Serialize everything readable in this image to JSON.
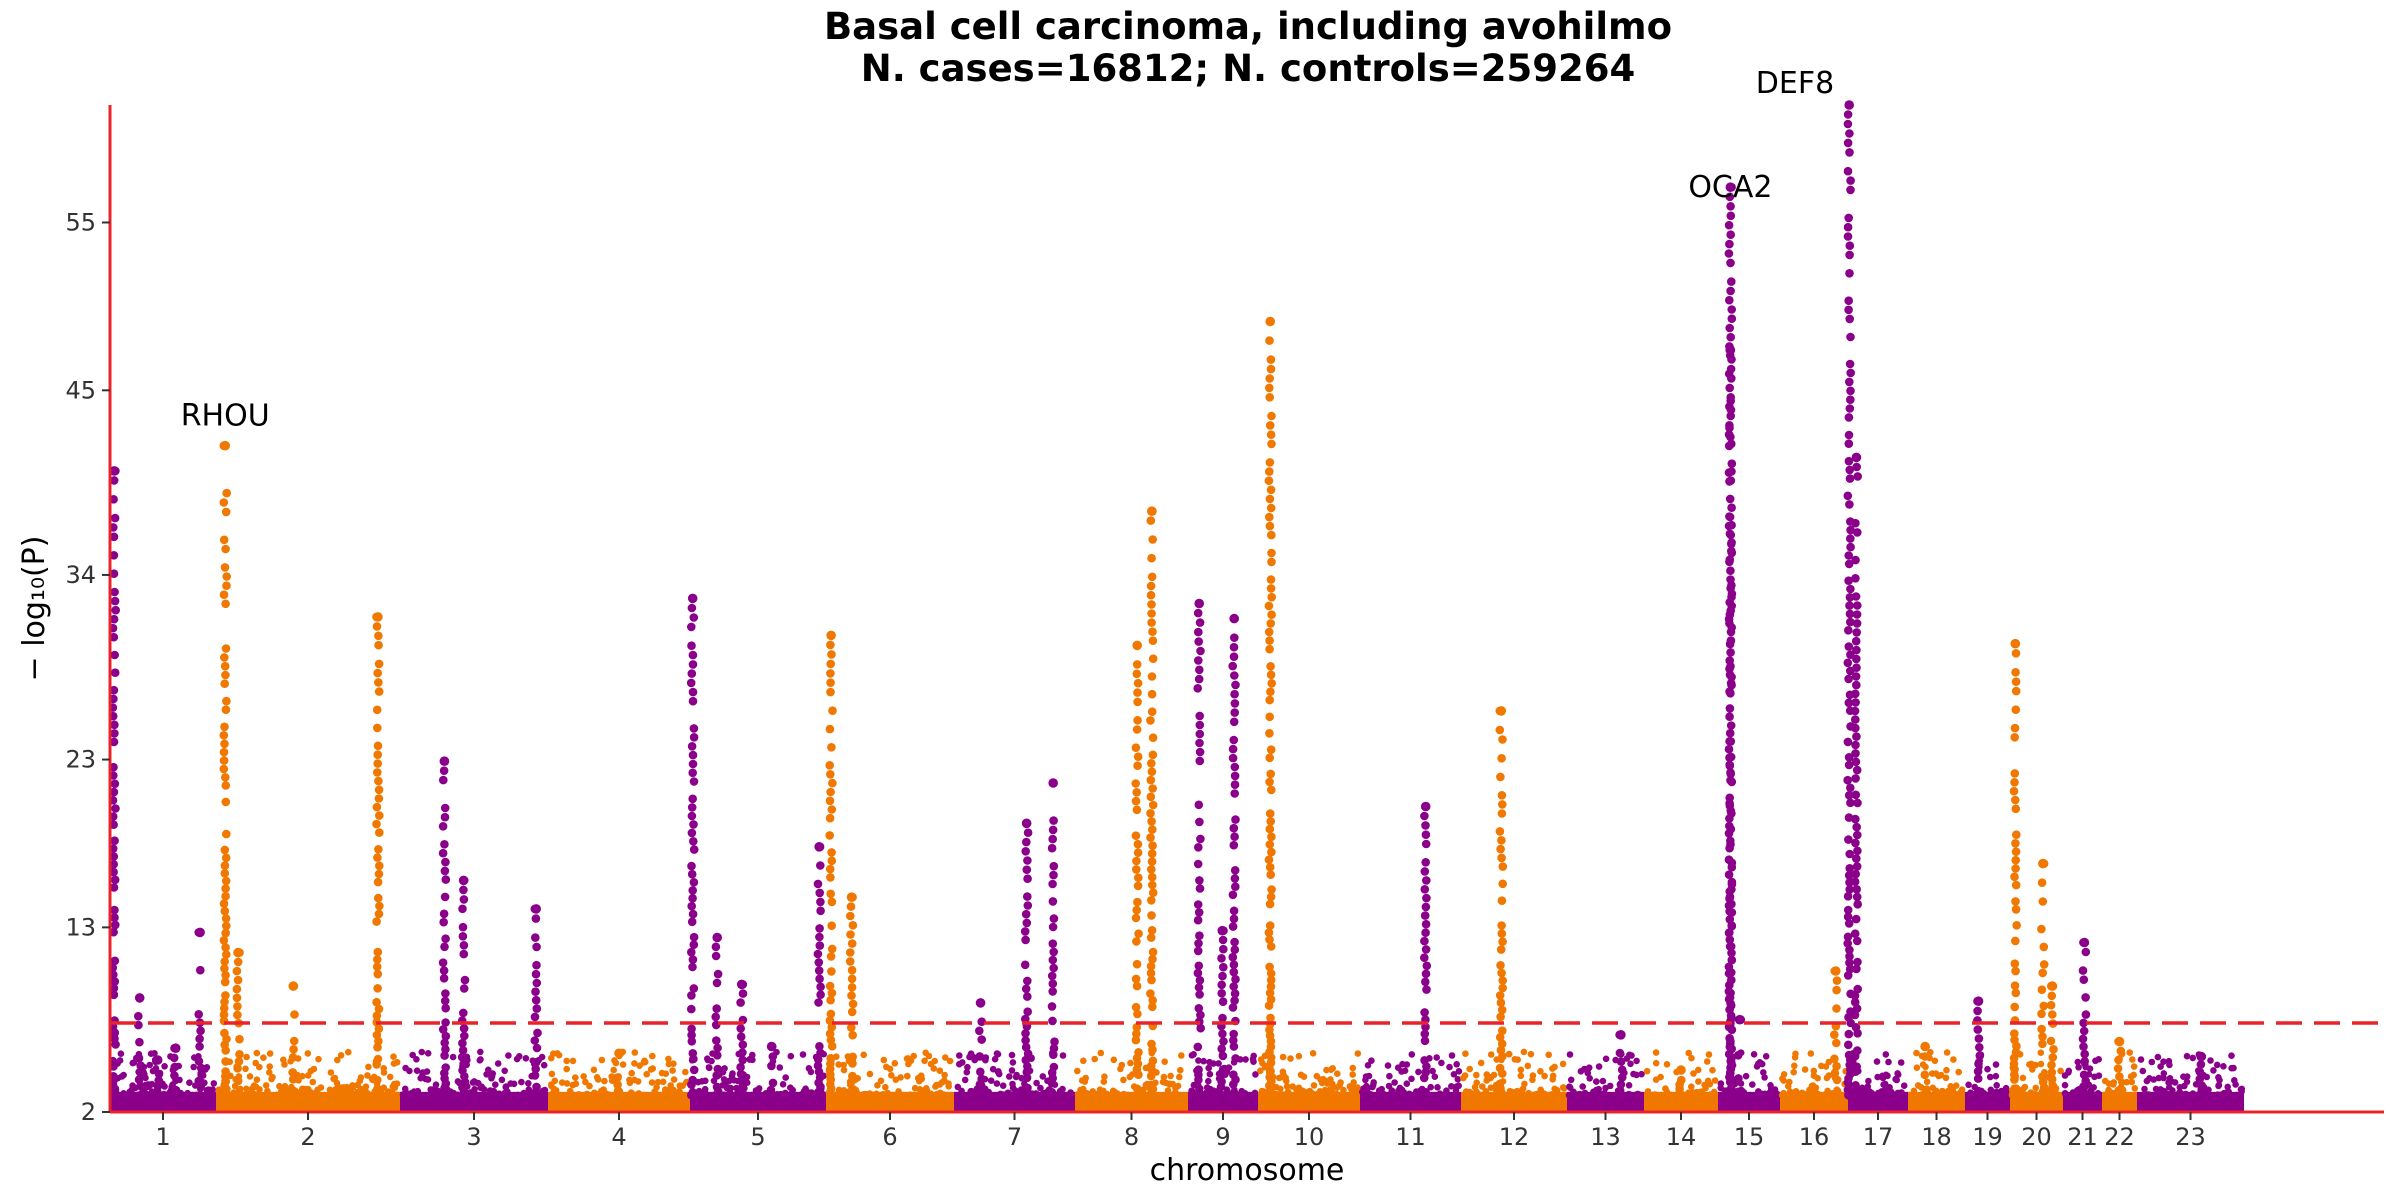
{
  "chart_data": {
    "type": "scatter",
    "subtype": "manhattan",
    "title": "Basal cell carcinoma, including avohilmo",
    "subtitle": "N. cases=16812; N. controls=259264",
    "xlabel": "chromosome",
    "ylabel": "− log₁₀(P)",
    "ylim": [
      2,
      62
    ],
    "yticks": [
      2,
      13,
      23,
      34,
      45,
      55
    ],
    "significance_line": 7.3,
    "grid": false,
    "colors": {
      "odd_chromosomes": "#8B008B",
      "even_chromosomes": "#F07800",
      "axis": "#E8242A",
      "threshold": "#E8242A"
    },
    "chromosomes": [
      {
        "label": "1",
        "peaks": [
          {
            "pos": 0.04,
            "y": 40.2
          },
          {
            "pos": 0.28,
            "y": 8.8
          },
          {
            "pos": 0.45,
            "y": 5.1
          },
          {
            "pos": 0.62,
            "y": 5.8
          },
          {
            "pos": 0.85,
            "y": 12.7
          }
        ]
      },
      {
        "label": "2",
        "peaks": [
          {
            "pos": 0.05,
            "y": 41.7
          },
          {
            "pos": 0.12,
            "y": 11.5
          },
          {
            "pos": 0.42,
            "y": 9.5
          },
          {
            "pos": 0.88,
            "y": 31.5
          }
        ]
      },
      {
        "label": "3",
        "peaks": [
          {
            "pos": 0.3,
            "y": 22.9
          },
          {
            "pos": 0.43,
            "y": 15.8
          },
          {
            "pos": 0.92,
            "y": 14.1
          }
        ]
      },
      {
        "label": "4",
        "peaks": [
          {
            "pos": 0.5,
            "y": 5.5
          }
        ]
      },
      {
        "label": "5",
        "peaks": [
          {
            "pos": 0.02,
            "y": 32.6
          },
          {
            "pos": 0.2,
            "y": 12.4
          },
          {
            "pos": 0.38,
            "y": 9.6
          },
          {
            "pos": 0.6,
            "y": 5.9
          },
          {
            "pos": 0.95,
            "y": 17.8
          }
        ]
      },
      {
        "label": "6",
        "peaks": [
          {
            "pos": 0.04,
            "y": 30.4
          },
          {
            "pos": 0.2,
            "y": 14.8
          }
        ]
      },
      {
        "label": "7",
        "peaks": [
          {
            "pos": 0.22,
            "y": 8.5
          },
          {
            "pos": 0.6,
            "y": 19.2
          },
          {
            "pos": 0.82,
            "y": 21.6
          }
        ]
      },
      {
        "label": "8",
        "peaks": [
          {
            "pos": 0.55,
            "y": 29.8
          },
          {
            "pos": 0.68,
            "y": 37.8
          }
        ]
      },
      {
        "label": "9",
        "peaks": [
          {
            "pos": 0.16,
            "y": 32.3
          },
          {
            "pos": 0.49,
            "y": 12.8
          },
          {
            "pos": 0.66,
            "y": 31.4
          }
        ]
      },
      {
        "label": "10",
        "peaks": [
          {
            "pos": 0.12,
            "y": 49.1
          }
        ]
      },
      {
        "label": "11",
        "peaks": [
          {
            "pos": 0.65,
            "y": 20.2
          }
        ]
      },
      {
        "label": "12",
        "peaks": [
          {
            "pos": 0.38,
            "y": 25.9
          }
        ]
      },
      {
        "label": "13",
        "peaks": [
          {
            "pos": 0.7,
            "y": 6.6
          }
        ]
      },
      {
        "label": "14",
        "peaks": [
          {
            "pos": 0.5,
            "y": 4.5
          }
        ]
      },
      {
        "label": "15",
        "peaks": [
          {
            "pos": 0.2,
            "y": 57.1
          },
          {
            "pos": 0.2,
            "y": 47.4
          },
          {
            "pos": 0.35,
            "y": 7.5
          }
        ]
      },
      {
        "label": "16",
        "peaks": [
          {
            "pos": 0.82,
            "y": 10.4
          }
        ]
      },
      {
        "label": "17",
        "peaks": [
          {
            "pos": 0.02,
            "y": 62.0
          },
          {
            "pos": 0.14,
            "y": 41.0
          }
        ]
      },
      {
        "label": "18",
        "peaks": [
          {
            "pos": 0.3,
            "y": 5.9
          }
        ]
      },
      {
        "label": "19",
        "peaks": [
          {
            "pos": 0.3,
            "y": 8.6
          }
        ]
      },
      {
        "label": "20",
        "peaks": [
          {
            "pos": 0.1,
            "y": 29.9
          },
          {
            "pos": 0.62,
            "y": 16.8
          },
          {
            "pos": 0.8,
            "y": 9.5
          }
        ]
      },
      {
        "label": "21",
        "peaks": [
          {
            "pos": 0.55,
            "y": 12.1
          }
        ]
      },
      {
        "label": "22",
        "peaks": [
          {
            "pos": 0.5,
            "y": 6.2
          }
        ]
      },
      {
        "label": "23",
        "peaks": [
          {
            "pos": 0.6,
            "y": 5.3
          }
        ]
      }
    ],
    "annotations": [
      {
        "text": "RHOU",
        "chrom": "2",
        "pos": 0.05,
        "y": 41.7
      },
      {
        "text": "OCA2",
        "chrom": "15",
        "pos": 0.2,
        "y": 57.1
      },
      {
        "text": "DEF8",
        "chrom": "17",
        "pos": 0.02,
        "y": 62.0
      }
    ]
  }
}
